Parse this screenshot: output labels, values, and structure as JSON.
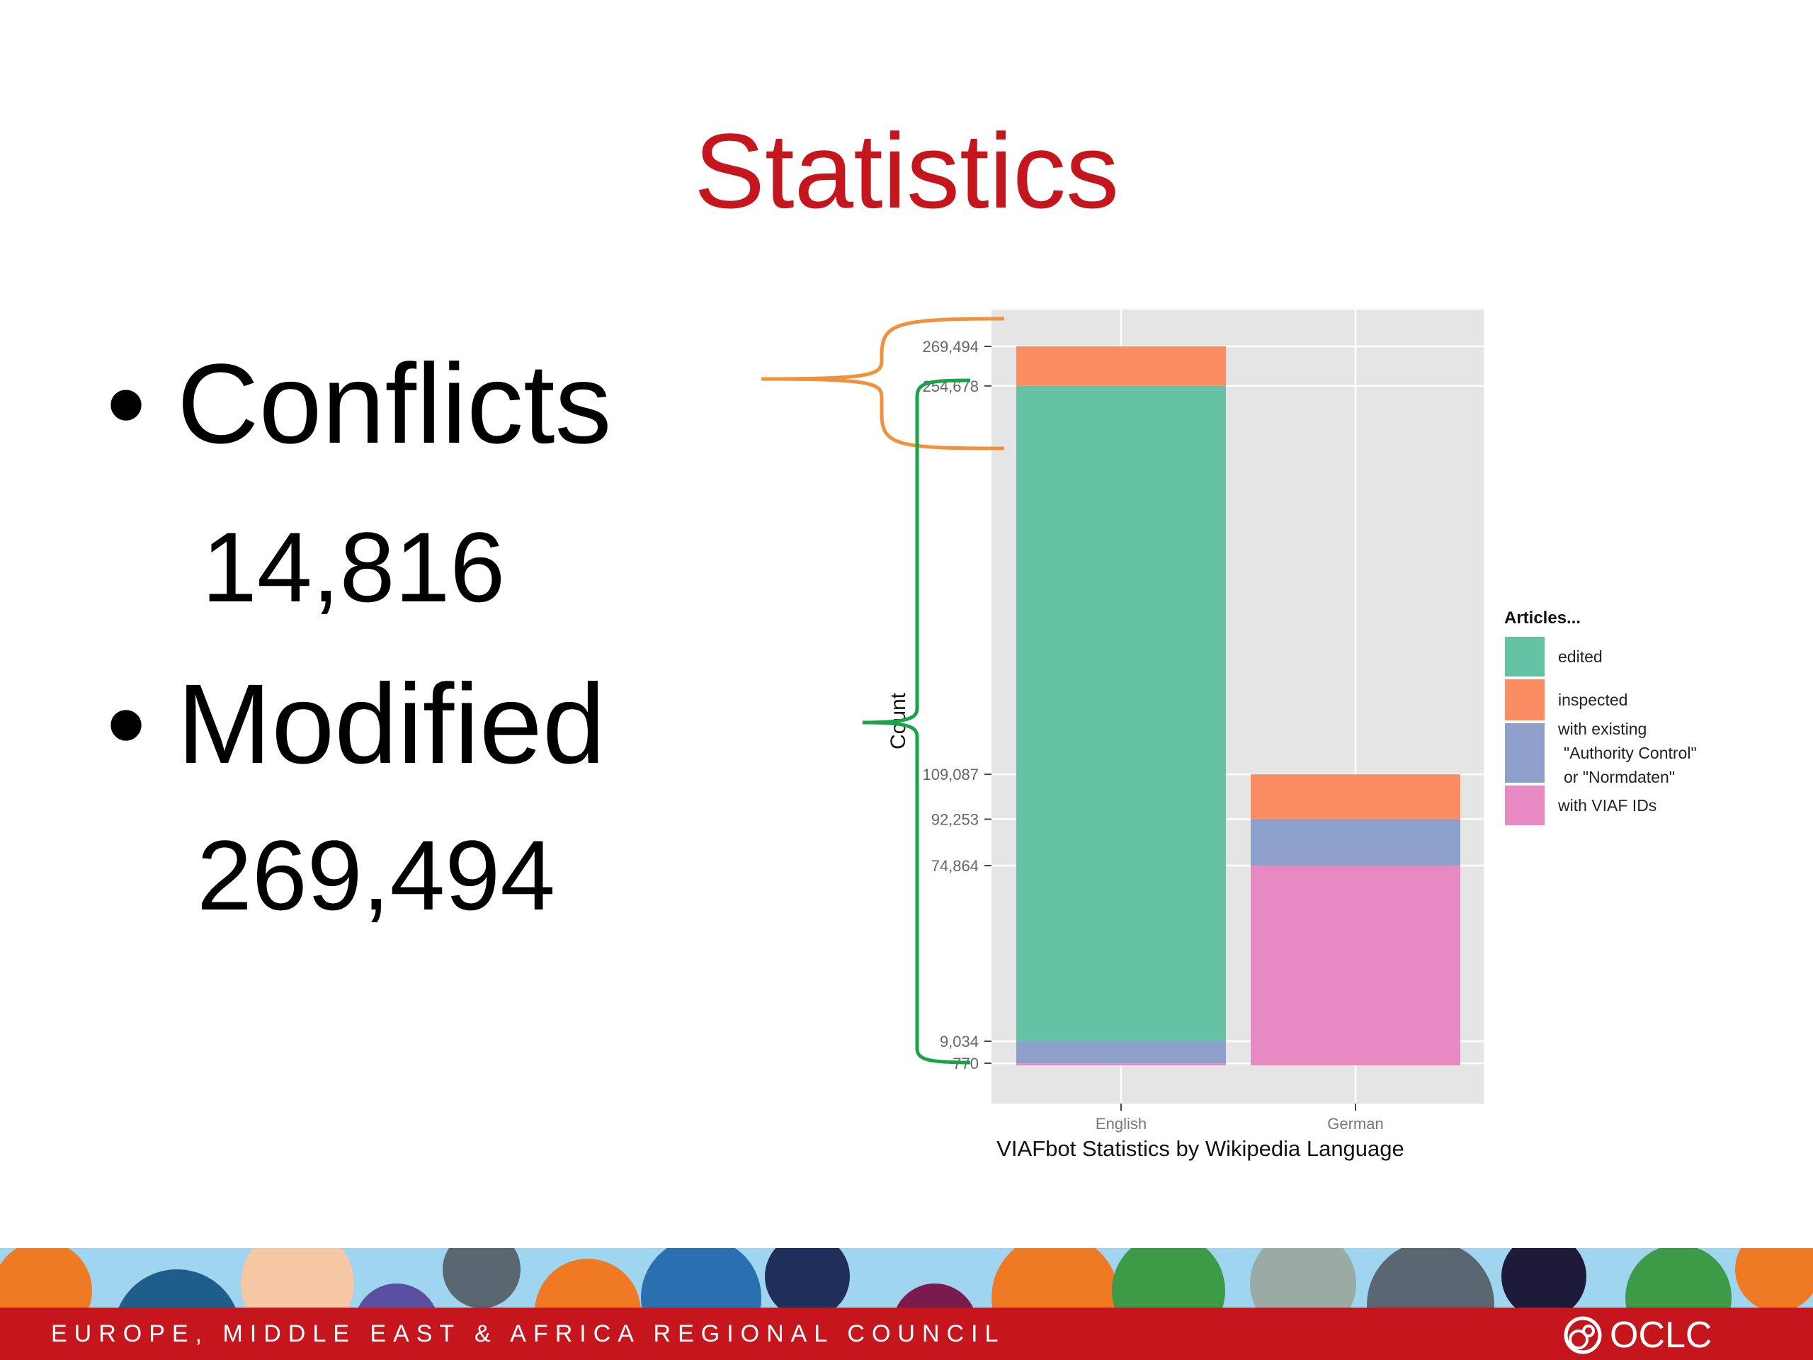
{
  "slide": {
    "title": "Statistics",
    "bullets": [
      {
        "label": "Conflicts",
        "value": "14,816"
      },
      {
        "label": "Modified",
        "value": "269,494"
      }
    ],
    "bullet_char": "•"
  },
  "footer": {
    "council_text": "EUROPE, MIDDLE EAST & AFRICA REGIONAL COUNCIL",
    "logo_text": "OCLC",
    "band_color": "#c4161c"
  },
  "chart_data": {
    "type": "bar",
    "stacked": true,
    "title": "",
    "xlabel": "VIAFbot Statistics by Wikipedia Language",
    "ylabel": "Count",
    "categories": [
      "English",
      "German"
    ],
    "ylim": [
      0,
      290000
    ],
    "y_ticks": [
      {
        "value": 770,
        "label": "770"
      },
      {
        "value": 9034,
        "label": "9,034"
      },
      {
        "value": 74864,
        "label": "74,864"
      },
      {
        "value": 92253,
        "label": "92,253"
      },
      {
        "value": 109087,
        "label": "109,087"
      },
      {
        "value": 254678,
        "label": "254,678"
      },
      {
        "value": 269494,
        "label": "269,494"
      }
    ],
    "legend_title": "Articles...",
    "legend_position": "right",
    "series": [
      {
        "name": "edited",
        "color": "#66c2a5",
        "segments": [
          [
            9034,
            254678
          ],
          null
        ]
      },
      {
        "name": "inspected",
        "color": "#fc8d62",
        "segments": [
          [
            254678,
            269494
          ],
          [
            92253,
            109087
          ]
        ]
      },
      {
        "name": "with existing \"Authority Control\" or \"Normdaten\"",
        "legend_lines": [
          "with existing",
          "\"Authority Control\"",
          "or \"Normdaten\""
        ],
        "color": "#8da0cb",
        "segments": [
          [
            770,
            9034
          ],
          [
            74864,
            92253
          ]
        ]
      },
      {
        "name": "with VIAF IDs",
        "color": "#e78ac3",
        "segments": [
          [
            0,
            770
          ],
          [
            0,
            74864
          ]
        ]
      }
    ],
    "grid": true,
    "panel_background": "#e5e5e5"
  },
  "annotations": {
    "conflict_brace_color": "#f0923d",
    "modified_brace_color": "#1aa34a"
  }
}
